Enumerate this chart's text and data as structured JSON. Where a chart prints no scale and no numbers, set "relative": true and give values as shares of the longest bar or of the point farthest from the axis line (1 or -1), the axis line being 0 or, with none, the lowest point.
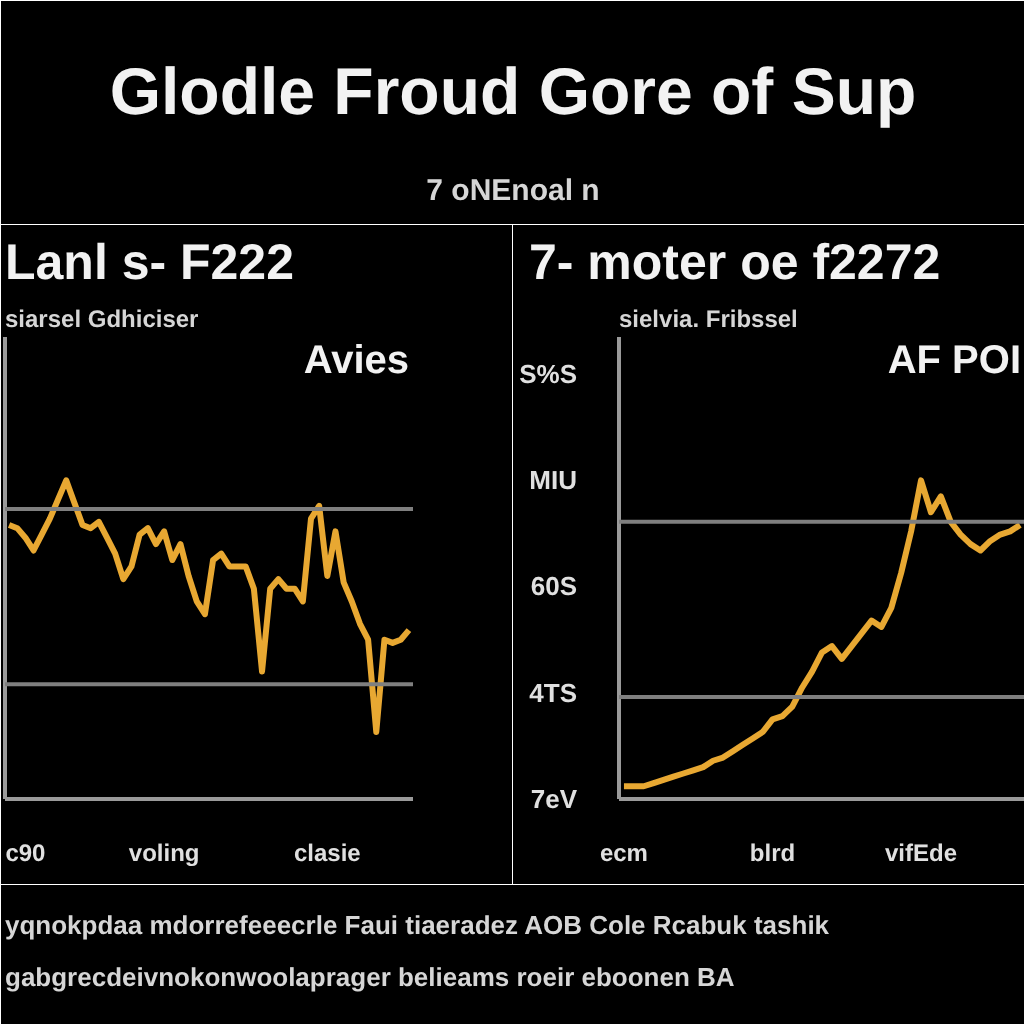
{
  "chart_data": [
    {
      "type": "other",
      "title": "Glodle Froud Gore of Sup",
      "subtitle": "7 oNEnoal n"
    },
    {
      "type": "line",
      "title": "Lanl s- F222",
      "subtitle": "siarsel Gdhiciser",
      "annotations": [
        "Avies"
      ],
      "relative": true,
      "categories": [
        null,
        null,
        "c90",
        null,
        null,
        null,
        null,
        null,
        null,
        null,
        null,
        null,
        null,
        null,
        null,
        null,
        null,
        null,
        null,
        "voling",
        null,
        null,
        null,
        null,
        null,
        null,
        null,
        null,
        null,
        null,
        null,
        null,
        null,
        null,
        null,
        null,
        null,
        null,
        null,
        "clasie",
        null,
        null,
        null,
        null,
        null,
        null,
        null,
        null,
        null,
        null
      ],
      "series": [
        {
          "color": "#e8a832",
          "values": [
            0.86,
            0.85,
            0.82,
            0.78,
            0.83,
            0.88,
            0.94,
            1.0,
            0.93,
            0.86,
            0.85,
            0.87,
            0.82,
            0.77,
            0.69,
            0.73,
            0.83,
            0.85,
            0.8,
            0.84,
            0.75,
            0.8,
            0.7,
            0.62,
            0.58,
            0.75,
            0.77,
            0.73,
            0.73,
            0.73,
            0.66,
            0.4,
            0.66,
            0.69,
            0.66,
            0.66,
            0.62,
            0.88,
            0.92,
            0.7,
            0.84,
            0.68,
            0.62,
            0.55,
            0.5,
            0.21,
            0.5,
            0.49,
            0.5,
            0.53
          ]
        }
      ],
      "ref_lines": [
        {
          "axis": "y",
          "value": 0.91,
          "color": "#7f7f7f"
        },
        {
          "axis": "y",
          "value": 0.36,
          "color": "#7f7f7f"
        }
      ]
    },
    {
      "type": "line",
      "title": "7- moter oe f2272",
      "subtitle": "sielvia. Fribssel",
      "annotations": [
        "AF POI",
        "S%S",
        "MIU",
        "60S",
        "4TS",
        "7eV"
      ],
      "relative": true,
      "categories": [
        "ecm",
        null,
        null,
        null,
        null,
        null,
        null,
        null,
        null,
        null,
        null,
        null,
        null,
        null,
        null,
        "blrd",
        null,
        null,
        null,
        null,
        null,
        null,
        null,
        null,
        null,
        null,
        null,
        null,
        null,
        null,
        "vifEde",
        null,
        null,
        null,
        null,
        null,
        null,
        null,
        null,
        null,
        null
      ],
      "series": [
        {
          "color": "#e8a832",
          "values": [
            0.04,
            0.04,
            0.04,
            0.05,
            0.06,
            0.07,
            0.08,
            0.09,
            0.1,
            0.12,
            0.13,
            0.15,
            0.17,
            0.19,
            0.21,
            0.25,
            0.26,
            0.29,
            0.35,
            0.4,
            0.46,
            0.48,
            0.44,
            0.48,
            0.52,
            0.56,
            0.54,
            0.6,
            0.71,
            0.84,
            1.0,
            0.9,
            0.95,
            0.87,
            0.83,
            0.8,
            0.78,
            0.81,
            0.83,
            0.84,
            0.86
          ]
        }
      ],
      "ref_lines": [
        {
          "axis": "y",
          "value": 0.87,
          "color": "#7f7f7f"
        },
        {
          "axis": "y",
          "value": 0.32,
          "color": "#7f7f7f"
        }
      ]
    },
    {
      "type": "other",
      "annotations": [
        "yqnokpdaa mdorrefeeecrle Faui tiaeradez AOB Cole Rcabuk tashik",
        "gabgrecdeivnokonwoolaprager belieams roeir eboonen BA"
      ]
    }
  ]
}
